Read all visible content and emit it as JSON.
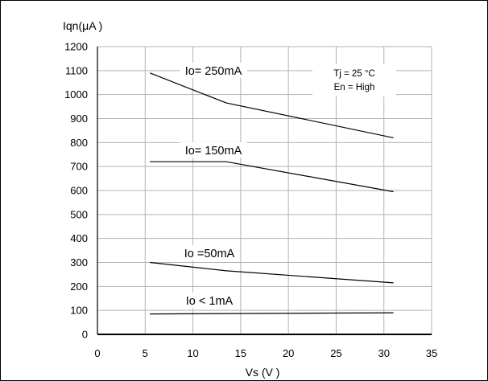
{
  "chart_data": {
    "type": "line",
    "title": "",
    "xlabel": "Vs (V )",
    "ylabel": "Iqn(μA )",
    "xlim": [
      0,
      35
    ],
    "ylim": [
      0,
      1200
    ],
    "x_ticks": [
      0,
      5,
      10,
      15,
      20,
      25,
      30,
      35
    ],
    "y_ticks": [
      0,
      100,
      200,
      300,
      400,
      500,
      600,
      700,
      800,
      900,
      1000,
      1100,
      1200
    ],
    "grid": true,
    "annotations": [
      "Tj =  25 °C",
      "En = High"
    ],
    "series": [
      {
        "name": "Io= 250mA",
        "x": [
          5.5,
          13.5,
          31
        ],
        "y": [
          1090,
          965,
          820
        ]
      },
      {
        "name": "Io= 150mA",
        "x": [
          5.5,
          13.5,
          31
        ],
        "y": [
          720,
          720,
          595
        ]
      },
      {
        "name": "Io =50mA",
        "x": [
          5.5,
          13.5,
          31
        ],
        "y": [
          300,
          265,
          215
        ]
      },
      {
        "name": "Io < 1mA",
        "x": [
          5.5,
          31
        ],
        "y": [
          85,
          90
        ]
      }
    ]
  }
}
